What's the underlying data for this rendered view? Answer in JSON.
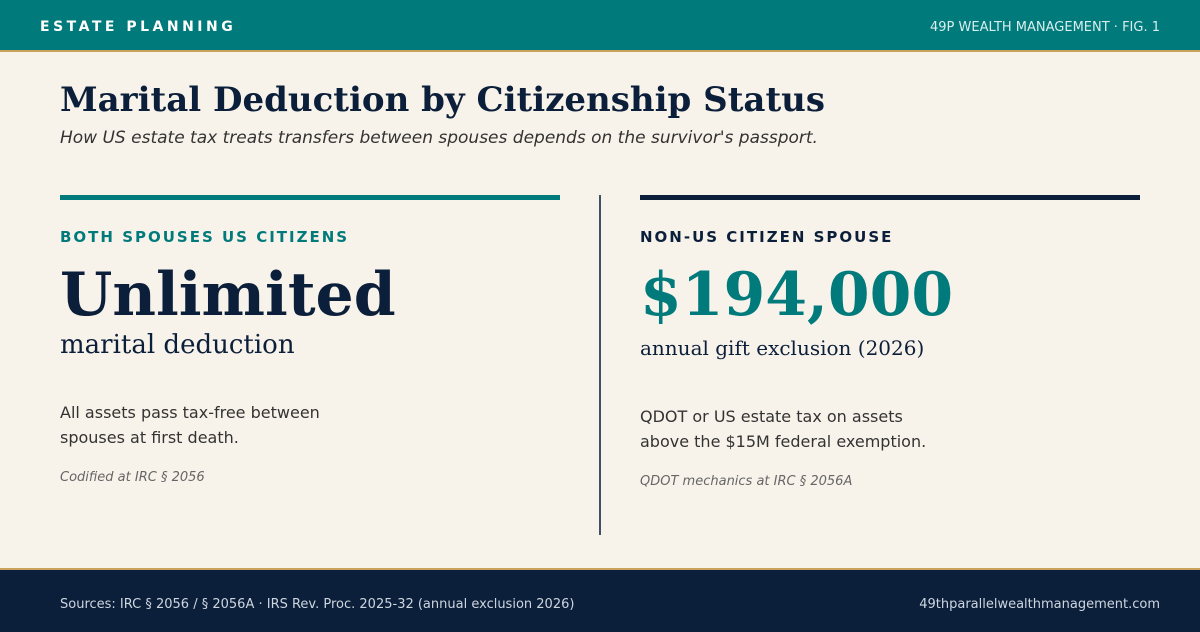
{
  "header": {
    "section": "ESTATE PLANNING",
    "brand": "49P WEALTH MANAGEMENT · FIG. 1"
  },
  "title": "Marital Deduction by Citizenship Status",
  "subtitle": "How US estate tax treats transfers between spouses depends on the survivor's passport.",
  "panels": [
    {
      "label": "BOTH SPOUSES US CITIZENS",
      "headline": "Unlimited",
      "caption": "marital deduction",
      "body": [
        "All assets pass tax-free between",
        "spouses at first death."
      ],
      "note": "Codified at IRC § 2056"
    },
    {
      "label": "NON-US CITIZEN SPOUSE",
      "headline": "$194,000",
      "caption": "annual gift exclusion (2026)",
      "body": [
        "QDOT or US estate tax on assets",
        "above the $15M federal exemption."
      ],
      "note": "QDOT mechanics at IRC § 2056A"
    }
  ],
  "footer": {
    "sources": "Sources: IRC § 2056 / § 2056A · IRS Rev. Proc. 2025-32 (annual exclusion 2026)",
    "site": "49thparallelwealthmanagement.com"
  }
}
